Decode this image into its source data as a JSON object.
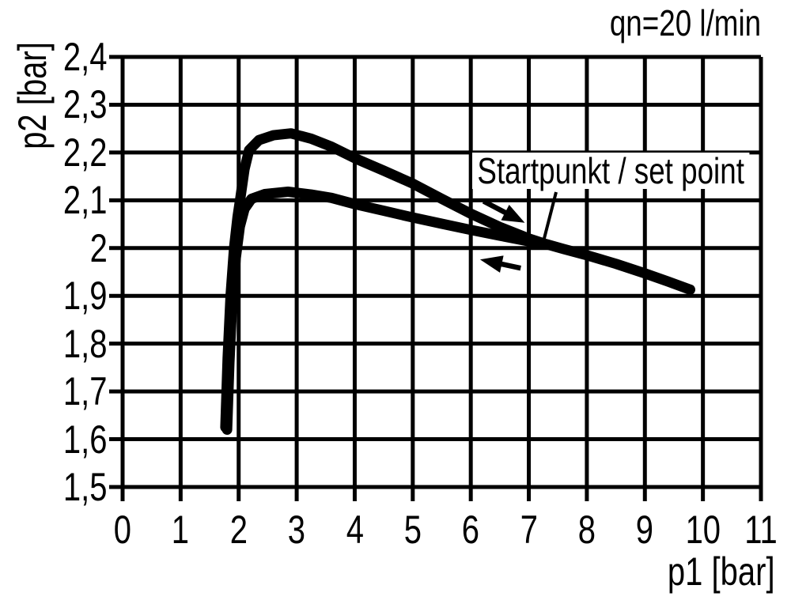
{
  "flow_label": "qn=20 l/min",
  "axis": {
    "x_label": "p1 [bar]",
    "y_label": "p2 [bar]"
  },
  "chart_data": {
    "type": "line",
    "title": "qn=20 l/min",
    "xlabel": "p1 [bar]",
    "ylabel": "p2 [bar]",
    "xlim": [
      0,
      11
    ],
    "ylim": [
      1.5,
      2.4
    ],
    "grid": true,
    "decimal_separator": ",",
    "x_ticks": [
      {
        "value": 0,
        "label": "0"
      },
      {
        "value": 1,
        "label": "1"
      },
      {
        "value": 2,
        "label": "2"
      },
      {
        "value": 3,
        "label": "3"
      },
      {
        "value": 4,
        "label": "4"
      },
      {
        "value": 5,
        "label": "5"
      },
      {
        "value": 6,
        "label": "6"
      },
      {
        "value": 7,
        "label": "7"
      },
      {
        "value": 8,
        "label": "8"
      },
      {
        "value": 9,
        "label": "9"
      },
      {
        "value": 10,
        "label": "10"
      },
      {
        "value": 11,
        "label": "11"
      }
    ],
    "y_ticks": [
      {
        "value": 2.4,
        "label": "2,4"
      },
      {
        "value": 2.3,
        "label": "2,3"
      },
      {
        "value": 2.2,
        "label": "2,2"
      },
      {
        "value": 2.1,
        "label": "2,1"
      },
      {
        "value": 2.0,
        "label": "2"
      },
      {
        "value": 1.9,
        "label": "1,9"
      },
      {
        "value": 1.8,
        "label": "1,8"
      },
      {
        "value": 1.7,
        "label": "1,7"
      },
      {
        "value": 1.6,
        "label": "1,6"
      },
      {
        "value": 1.5,
        "label": "1,5"
      }
    ],
    "series": [
      {
        "name": "upper hysteresis branch (continues to p1 max)",
        "points": [
          [
            1.77,
            1.625
          ],
          [
            1.81,
            1.77
          ],
          [
            1.86,
            1.9
          ],
          [
            1.92,
            2.0
          ],
          [
            1.98,
            2.065
          ],
          [
            2.03,
            2.105
          ],
          [
            2.1,
            2.165
          ],
          [
            2.18,
            2.205
          ],
          [
            2.35,
            2.226
          ],
          [
            2.6,
            2.236
          ],
          [
            2.9,
            2.24
          ],
          [
            3.25,
            2.229
          ],
          [
            3.6,
            2.212
          ],
          [
            4.0,
            2.188
          ],
          [
            4.5,
            2.162
          ],
          [
            5.0,
            2.135
          ],
          [
            5.5,
            2.103
          ],
          [
            6.0,
            2.072
          ],
          [
            6.5,
            2.044
          ],
          [
            7.0,
            2.02
          ],
          [
            7.25,
            2.01
          ],
          [
            7.6,
            1.998
          ],
          [
            8.0,
            1.985
          ],
          [
            8.5,
            1.967
          ],
          [
            9.0,
            1.947
          ],
          [
            9.4,
            1.93
          ],
          [
            9.78,
            1.913
          ]
        ]
      },
      {
        "name": "lower hysteresis branch (ends at set point)",
        "points": [
          [
            1.8,
            1.62
          ],
          [
            1.84,
            1.76
          ],
          [
            1.89,
            1.89
          ],
          [
            1.95,
            1.98
          ],
          [
            2.02,
            2.045
          ],
          [
            2.1,
            2.082
          ],
          [
            2.22,
            2.103
          ],
          [
            2.45,
            2.113
          ],
          [
            2.85,
            2.118
          ],
          [
            3.25,
            2.112
          ],
          [
            3.6,
            2.105
          ],
          [
            4.0,
            2.092
          ],
          [
            4.5,
            2.078
          ],
          [
            5.0,
            2.064
          ],
          [
            5.5,
            2.051
          ],
          [
            6.0,
            2.038
          ],
          [
            6.5,
            2.026
          ],
          [
            7.0,
            2.014
          ],
          [
            7.25,
            2.01
          ]
        ]
      }
    ],
    "arrows": [
      {
        "from": [
          6.22,
          2.098
        ],
        "to": [
          6.93,
          2.053
        ],
        "meaning": "travel direction along upper branch"
      },
      {
        "from": [
          6.86,
          1.958
        ],
        "to": [
          6.16,
          1.976
        ],
        "meaning": "travel direction along lower branch"
      }
    ],
    "set_point": {
      "label": "Startpunkt / set point",
      "at": [
        7.25,
        2.013
      ],
      "leader_from": [
        7.47,
        2.117
      ]
    }
  }
}
